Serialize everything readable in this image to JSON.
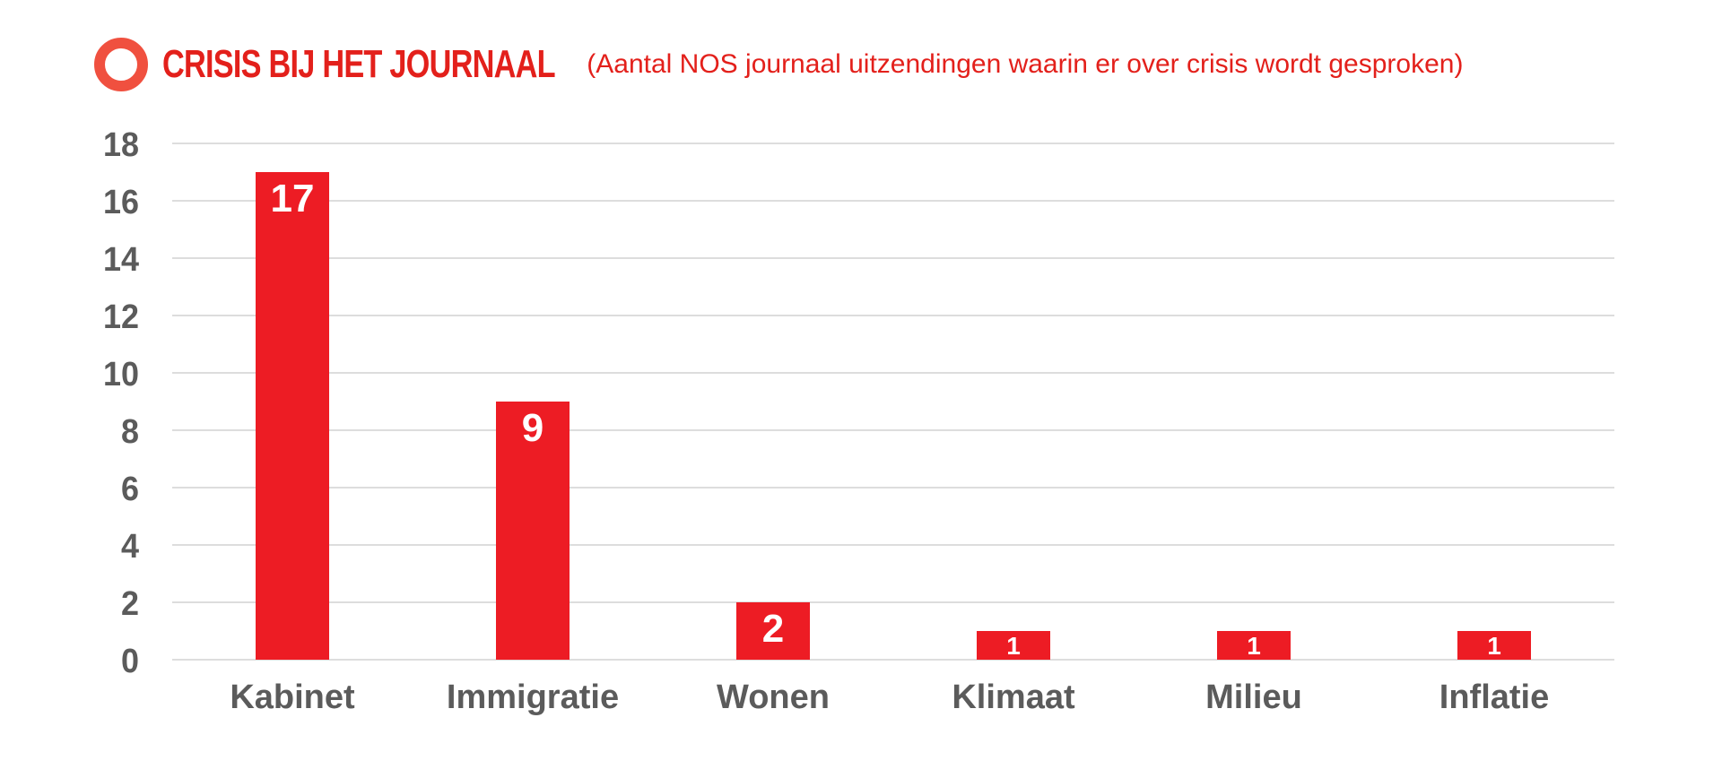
{
  "header": {
    "title": "CRISIS BIJ HET JOURNAAL",
    "subtitle": "(Aantal NOS journaal uitzendingen waarin er over crisis wordt gesproken)"
  },
  "colors": {
    "bar": "#ed1c24",
    "ring": "#f0503f",
    "title": "#e3201b",
    "grid": "#dddddd",
    "tick_text": "#5b5b5b",
    "data_label": "#ffffff"
  },
  "chart_data": {
    "type": "bar",
    "title": "CRISIS BIJ HET JOURNAAL",
    "subtitle": "(Aantal NOS journaal uitzendingen waarin er over crisis wordt gesproken)",
    "categories": [
      "Kabinet",
      "Immigratie",
      "Wonen",
      "Klimaat",
      "Milieu",
      "Inflatie"
    ],
    "values": [
      17,
      9,
      2,
      1,
      1,
      1
    ],
    "data_labels": [
      "17",
      "9",
      "2",
      "1",
      "1",
      "1"
    ],
    "ylim": [
      0,
      18
    ],
    "yticks": [
      "0",
      "2",
      "4",
      "6",
      "8",
      "10",
      "12",
      "14",
      "16",
      "18"
    ],
    "xlabel": "",
    "ylabel": "",
    "grid": true,
    "legend": "none"
  }
}
